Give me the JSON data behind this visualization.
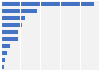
{
  "values": [
    25465,
    10074,
    6787,
    5765,
    4842,
    4723,
    2571,
    1616,
    1220,
    983
  ],
  "bar_color": "#4472c4",
  "background_color": "#ffffff",
  "panel_color": "#f2f2f2",
  "xlim": [
    0,
    27000
  ],
  "bar_height": 0.55,
  "grid_color": "#ffffff",
  "grid_linewidth": 0.8
}
